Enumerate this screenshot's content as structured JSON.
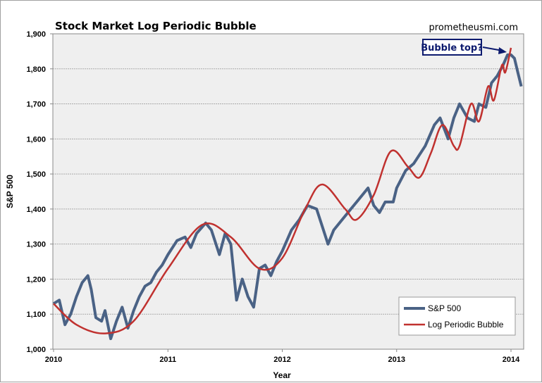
{
  "chart_data": {
    "type": "line",
    "title": "Stock Market Log Periodic Bubble",
    "source": "prometheusmi.com",
    "annotation": "Bubble top?",
    "xlabel": "Year",
    "ylabel": "S&P 500",
    "xlim": [
      2010,
      2014.1
    ],
    "ylim": [
      1000,
      1900
    ],
    "x_ticks": [
      "2010",
      "2011",
      "2012",
      "2013",
      "2014"
    ],
    "y_ticks": [
      "1,000",
      "1,100",
      "1,200",
      "1,300",
      "1,400",
      "1,500",
      "1,600",
      "1,700",
      "1,800",
      "1,900"
    ],
    "grid": "horizontal",
    "legend": "bottom-right",
    "colors": {
      "sp500": "#4a6285",
      "lppl": "#c0312f",
      "plot_bg": "#efefef",
      "annotation": "#0c1a6e"
    },
    "series": [
      {
        "name": "S&P 500",
        "x": [
          2010.0,
          2010.05,
          2010.1,
          2010.15,
          2010.2,
          2010.25,
          2010.3,
          2010.33,
          2010.37,
          2010.42,
          2010.45,
          2010.5,
          2010.55,
          2010.6,
          2010.65,
          2010.7,
          2010.75,
          2010.8,
          2010.85,
          2010.9,
          2010.95,
          2011.0,
          2011.08,
          2011.15,
          2011.2,
          2011.25,
          2011.33,
          2011.38,
          2011.45,
          2011.5,
          2011.55,
          2011.6,
          2011.65,
          2011.7,
          2011.75,
          2011.8,
          2011.85,
          2011.9,
          2011.95,
          2012.0,
          2012.08,
          2012.15,
          2012.22,
          2012.3,
          2012.35,
          2012.4,
          2012.45,
          2012.5,
          2012.6,
          2012.7,
          2012.75,
          2012.8,
          2012.85,
          2012.9,
          2012.97,
          2013.0,
          2013.08,
          2013.15,
          2013.25,
          2013.33,
          2013.38,
          2013.45,
          2013.5,
          2013.55,
          2013.62,
          2013.68,
          2013.72,
          2013.78,
          2013.83,
          2013.88,
          2013.93,
          2013.97,
          2014.0,
          2014.03,
          2014.06,
          2014.09
        ],
        "values": [
          1130,
          1140,
          1070,
          1100,
          1150,
          1190,
          1210,
          1170,
          1090,
          1080,
          1110,
          1030,
          1080,
          1120,
          1060,
          1110,
          1150,
          1180,
          1190,
          1220,
          1240,
          1270,
          1310,
          1320,
          1290,
          1330,
          1360,
          1340,
          1270,
          1330,
          1300,
          1140,
          1200,
          1150,
          1120,
          1230,
          1240,
          1210,
          1250,
          1280,
          1340,
          1370,
          1410,
          1400,
          1350,
          1300,
          1340,
          1360,
          1400,
          1440,
          1460,
          1410,
          1390,
          1420,
          1420,
          1460,
          1510,
          1530,
          1580,
          1640,
          1660,
          1600,
          1660,
          1700,
          1660,
          1650,
          1700,
          1690,
          1760,
          1780,
          1810,
          1840,
          1840,
          1830,
          1790,
          1750
        ]
      },
      {
        "name": "Log Periodic Bubble",
        "x": [
          2010.0,
          2010.2,
          2010.45,
          2010.7,
          2011.0,
          2011.3,
          2011.55,
          2011.8,
          2012.0,
          2012.2,
          2012.35,
          2012.55,
          2012.65,
          2012.8,
          2012.95,
          2013.1,
          2013.2,
          2013.3,
          2013.4,
          2013.5,
          2013.55,
          2013.65,
          2013.72,
          2013.8,
          2013.85,
          2013.92,
          2013.95,
          2014.0
        ],
        "values": [
          1130,
          1070,
          1045,
          1080,
          1230,
          1355,
          1320,
          1230,
          1260,
          1400,
          1470,
          1400,
          1370,
          1440,
          1565,
          1520,
          1490,
          1560,
          1640,
          1580,
          1580,
          1700,
          1650,
          1750,
          1710,
          1810,
          1790,
          1860
        ]
      }
    ]
  }
}
